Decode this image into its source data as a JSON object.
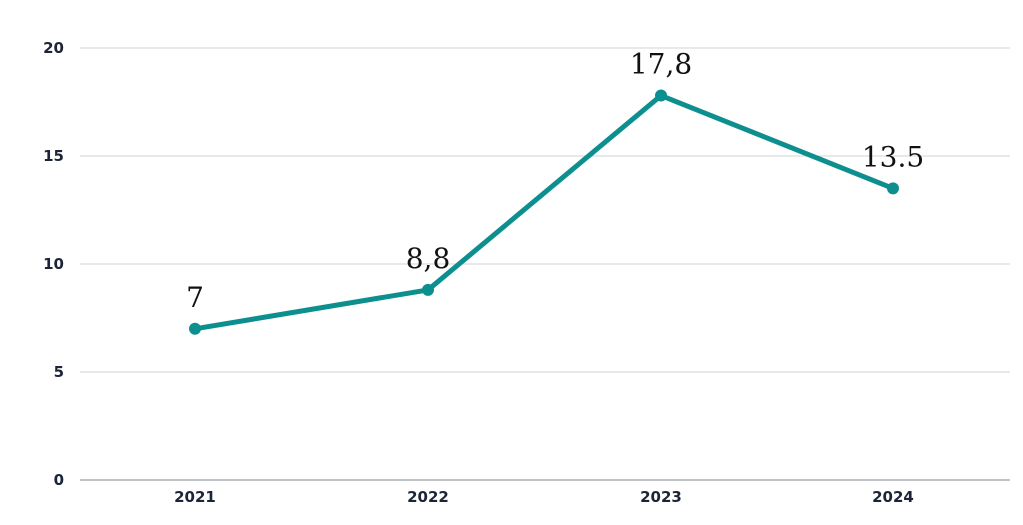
{
  "chart_data": {
    "type": "line",
    "categories": [
      "2021",
      "2022",
      "2023",
      "2024"
    ],
    "series": [
      {
        "values": [
          7,
          8.8,
          17.8,
          13.5
        ]
      }
    ],
    "data_labels": [
      "7",
      "8,8",
      "17,8",
      "13.5"
    ],
    "y_ticks": [
      "0",
      "5",
      "10",
      "15",
      "20"
    ],
    "ylim": [
      0,
      20
    ],
    "grid": true,
    "line_color": "#0d8f8f"
  }
}
